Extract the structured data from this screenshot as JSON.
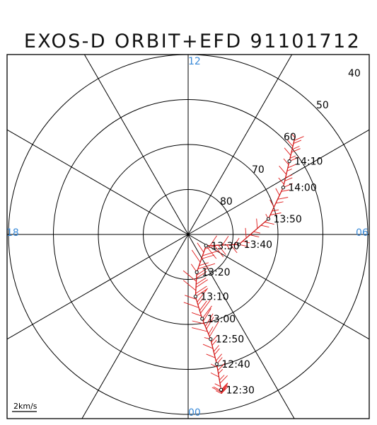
{
  "chart_data": {
    "type": "scatter",
    "title": "EXOS-D ORBIT+EFD 91101712",
    "mlt_labels": {
      "top": "12",
      "bottom": "00",
      "left": "18",
      "right": "06"
    },
    "latitude_labels": [
      "40",
      "50",
      "60",
      "70",
      "80"
    ],
    "latitude_rings": [
      50,
      60,
      70,
      80
    ],
    "scale_label": "2km/s",
    "colors": {
      "axes": "#000000",
      "vectors": "#e01a1a",
      "mlt_labels": "#3a8ad8"
    },
    "orbit": [
      {
        "time": "12:30",
        "mlt": 0.8,
        "colat": 35.3
      },
      {
        "time": "12:40",
        "mlt": 0.83,
        "colat": 29.5
      },
      {
        "time": "12:50",
        "mlt": 0.81,
        "colat": 23.8
      },
      {
        "time": "13:00",
        "mlt": 0.63,
        "colat": 19.0
      },
      {
        "time": "13:10",
        "mlt": 0.45,
        "colat": 13.9
      },
      {
        "time": "13:20",
        "mlt": 0.86,
        "colat": 8.6
      },
      {
        "time": "13:30",
        "mlt": 3.86,
        "colat": 4.7
      },
      {
        "time": "13:40",
        "mlt": 5.26,
        "colat": 11.5
      },
      {
        "time": "13:50",
        "mlt": 6.73,
        "colat": 18.2
      },
      {
        "time": "14:00",
        "mlt": 7.75,
        "colat": 23.6
      },
      {
        "time": "14:10",
        "mlt": 8.39,
        "colat": 27.8
      }
    ]
  }
}
